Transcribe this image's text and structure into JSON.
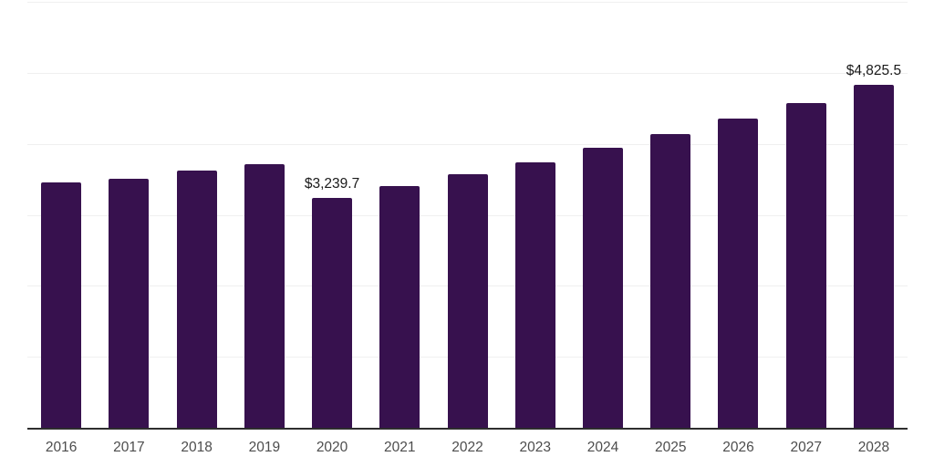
{
  "chart_data": {
    "type": "bar",
    "title": "",
    "xlabel": "",
    "ylabel": "",
    "categories": [
      "2016",
      "2017",
      "2018",
      "2019",
      "2020",
      "2021",
      "2022",
      "2023",
      "2024",
      "2025",
      "2026",
      "2027",
      "2028"
    ],
    "values": [
      3460,
      3510,
      3620,
      3710,
      3239.7,
      3400,
      3570,
      3740,
      3940,
      4140,
      4350,
      4570,
      4825.5
    ],
    "data_labels": [
      {
        "index": 4,
        "text": "$3,239.7"
      },
      {
        "index": 12,
        "text": "$4,825.5"
      }
    ],
    "ylim": [
      0,
      6000
    ],
    "grid": true,
    "gridline_values": [
      1000,
      2000,
      3000,
      4000,
      5000,
      6000
    ],
    "legend": false,
    "colors": {
      "bar": "#37114E",
      "axis_line": "#2e2e2e",
      "gridline": "#f0f0f0",
      "tick_label": "#4d4d4d",
      "data_label": "#1a1a1a",
      "background": "#ffffff"
    }
  }
}
